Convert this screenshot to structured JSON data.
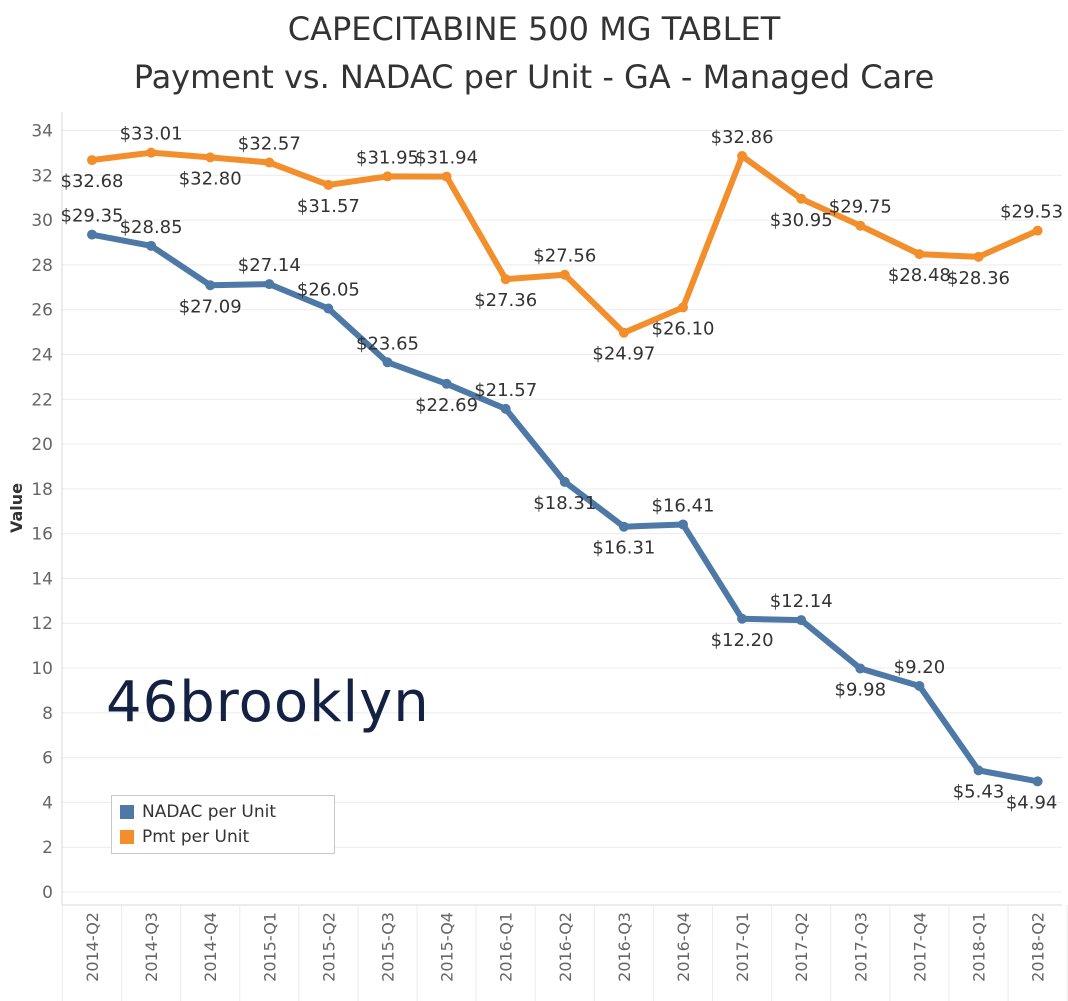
{
  "title_line1": "CAPECITABINE 500 MG TABLET",
  "title_line2": "Payment vs. NADAC per Unit - GA - Managed Care",
  "logo_text": "46brooklyn",
  "chart_data": {
    "type": "line",
    "title": "CAPECITABINE 500 MG TABLET Payment vs. NADAC per Unit - GA - Managed Care",
    "xlabel": "",
    "ylabel": "Value",
    "ylim": [
      0,
      34
    ],
    "yticks": [
      0,
      2,
      4,
      6,
      8,
      10,
      12,
      14,
      16,
      18,
      20,
      22,
      24,
      26,
      28,
      30,
      32,
      34
    ],
    "categories": [
      "2014-Q2",
      "2014-Q3",
      "2014-Q4",
      "2015-Q1",
      "2015-Q2",
      "2015-Q3",
      "2015-Q4",
      "2016-Q1",
      "2016-Q2",
      "2016-Q3",
      "2016-Q4",
      "2017-Q1",
      "2017-Q2",
      "2017-Q3",
      "2017-Q4",
      "2018-Q1",
      "2018-Q2"
    ],
    "legend_position": "bottom-left",
    "series": [
      {
        "name": "NADAC per Unit",
        "color": "#4e79a7",
        "values": [
          29.35,
          28.85,
          27.09,
          27.14,
          26.05,
          23.65,
          22.69,
          21.57,
          18.31,
          16.31,
          16.41,
          12.2,
          12.14,
          9.98,
          9.2,
          5.43,
          4.94
        ],
        "labels": [
          "$29.35",
          "$28.85",
          "$27.09",
          "$27.14",
          "$26.05",
          "$23.65",
          "$22.69",
          "$21.57",
          "$18.31",
          "$16.31",
          "$16.41",
          "$12.20",
          "$12.14",
          "$9.98",
          "$9.20",
          "$5.43",
          "$4.94"
        ],
        "label_placement": [
          "above",
          "above",
          "below",
          "above",
          "above",
          "above",
          "below",
          "above",
          "below",
          "below",
          "above",
          "below",
          "above",
          "below",
          "above",
          "below",
          "below"
        ]
      },
      {
        "name": "Pmt per Unit",
        "color": "#f28e2b",
        "values": [
          32.68,
          33.01,
          32.8,
          32.57,
          31.57,
          31.95,
          31.94,
          27.36,
          27.56,
          24.97,
          26.1,
          32.86,
          30.95,
          29.75,
          28.48,
          28.36,
          29.53
        ],
        "labels": [
          "$32.68",
          "$33.01",
          "$32.80",
          "$32.57",
          "$31.57",
          "$31.95",
          "$31.94",
          "$27.36",
          "$27.56",
          "$24.97",
          "$26.10",
          "$32.86",
          "$30.95",
          "$29.75",
          "$28.48",
          "$28.36",
          "$29.53"
        ],
        "label_placement": [
          "below",
          "above",
          "below",
          "above",
          "below",
          "above",
          "above",
          "below",
          "above",
          "below",
          "below",
          "above",
          "below",
          "above",
          "below",
          "below",
          "above"
        ]
      }
    ]
  }
}
